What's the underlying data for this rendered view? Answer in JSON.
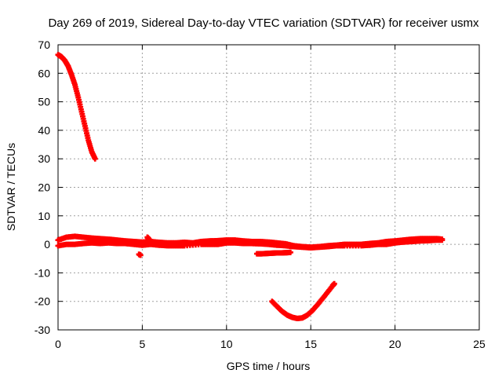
{
  "chart_data": {
    "type": "scatter",
    "title": "Day 269 of 2019, Sidereal Day-to-day VTEC variation (SDTVAR) for receiver usmx",
    "xlabel": "GPS time / hours",
    "ylabel": "SDTVAR / TECUs",
    "xlim": [
      0,
      25
    ],
    "ylim": [
      -30,
      70
    ],
    "xticks": [
      0,
      5,
      10,
      15,
      20,
      25
    ],
    "yticks": [
      -30,
      -20,
      -10,
      0,
      10,
      20,
      30,
      40,
      50,
      60,
      70
    ],
    "grid": true,
    "marker_color": "#ff0000",
    "series": [
      {
        "name": "satellite arc 1",
        "points": [
          [
            0.0,
            66.5
          ],
          [
            0.2,
            65.8
          ],
          [
            0.4,
            64.5
          ],
          [
            0.6,
            62.5
          ],
          [
            0.8,
            59.5
          ],
          [
            1.0,
            56.0
          ],
          [
            1.2,
            51.5
          ],
          [
            1.4,
            46.5
          ],
          [
            1.6,
            41.5
          ],
          [
            1.8,
            36.5
          ],
          [
            2.0,
            32.5
          ],
          [
            2.2,
            30.0
          ]
        ]
      },
      {
        "name": "upper band",
        "points": [
          [
            0.0,
            1.5
          ],
          [
            0.5,
            2.5
          ],
          [
            1.0,
            2.8
          ],
          [
            1.5,
            2.5
          ],
          [
            2.0,
            2.2
          ],
          [
            2.5,
            2.0
          ],
          [
            3.0,
            1.8
          ],
          [
            3.5,
            1.5
          ],
          [
            4.0,
            1.2
          ],
          [
            4.5,
            1.0
          ],
          [
            5.0,
            0.8
          ],
          [
            5.5,
            1.0
          ],
          [
            6.0,
            0.7
          ],
          [
            6.5,
            0.5
          ],
          [
            7.0,
            0.5
          ],
          [
            7.5,
            0.7
          ],
          [
            8.0,
            0.5
          ],
          [
            8.5,
            1.0
          ],
          [
            9.0,
            1.2
          ],
          [
            9.5,
            1.3
          ],
          [
            10.0,
            1.5
          ],
          [
            10.5,
            1.5
          ],
          [
            11.0,
            1.2
          ],
          [
            11.5,
            1.0
          ],
          [
            12.0,
            1.0
          ],
          [
            12.5,
            0.8
          ],
          [
            13.0,
            0.5
          ],
          [
            13.5,
            0.2
          ],
          [
            14.0,
            -0.5
          ],
          [
            14.5,
            -0.8
          ],
          [
            15.0,
            -1.0
          ],
          [
            15.5,
            -0.8
          ],
          [
            16.0,
            -0.5
          ],
          [
            16.5,
            -0.3
          ],
          [
            17.0,
            0.0
          ],
          [
            17.5,
            0.0
          ],
          [
            18.0,
            0.0
          ],
          [
            18.5,
            0.3
          ],
          [
            19.0,
            0.5
          ],
          [
            19.5,
            1.0
          ],
          [
            20.0,
            1.2
          ],
          [
            20.5,
            1.5
          ],
          [
            21.0,
            1.8
          ],
          [
            21.5,
            2.0
          ],
          [
            22.0,
            2.0
          ],
          [
            22.5,
            2.0
          ],
          [
            22.8,
            1.8
          ]
        ]
      },
      {
        "name": "lower band",
        "points": [
          [
            0.0,
            -0.5
          ],
          [
            0.5,
            0.0
          ],
          [
            1.0,
            0.0
          ],
          [
            1.5,
            0.3
          ],
          [
            2.0,
            0.5
          ],
          [
            2.5,
            0.3
          ],
          [
            3.0,
            0.5
          ],
          [
            3.5,
            0.3
          ],
          [
            4.0,
            0.3
          ],
          [
            4.5,
            0.0
          ],
          [
            5.0,
            -0.3
          ],
          [
            5.5,
            0.0
          ],
          [
            6.0,
            -0.3
          ],
          [
            6.5,
            -0.5
          ],
          [
            7.0,
            -0.5
          ],
          [
            7.5,
            -0.5
          ],
          [
            8.5,
            0.0
          ],
          [
            9.0,
            0.0
          ],
          [
            9.5,
            0.0
          ],
          [
            10.0,
            0.5
          ],
          [
            10.5,
            0.5
          ],
          [
            11.0,
            0.3
          ],
          [
            11.5,
            0.3
          ],
          [
            12.0,
            0.2
          ],
          [
            12.5,
            0.0
          ],
          [
            13.0,
            -0.3
          ],
          [
            13.5,
            -0.5
          ],
          [
            14.0,
            -0.8
          ],
          [
            14.5,
            -1.0
          ],
          [
            15.0,
            -1.2
          ],
          [
            15.5,
            -1.0
          ],
          [
            16.0,
            -0.8
          ],
          [
            16.5,
            -0.5
          ],
          [
            17.0,
            -0.5
          ],
          [
            18.0,
            -0.5
          ],
          [
            18.5,
            -0.3
          ],
          [
            19.0,
            0.0
          ],
          [
            19.5,
            0.0
          ],
          [
            20.0,
            0.5
          ],
          [
            20.5,
            0.8
          ],
          [
            21.0,
            1.0
          ],
          [
            21.5,
            1.2
          ],
          [
            22.0,
            1.3
          ],
          [
            22.5,
            1.5
          ],
          [
            22.8,
            1.5
          ]
        ]
      },
      {
        "name": "short offset segments",
        "points": [
          [
            4.8,
            -3.5
          ],
          [
            4.9,
            -3.8
          ],
          [
            11.8,
            -3.3
          ],
          [
            12.1,
            -3.3
          ],
          [
            12.4,
            -3.2
          ],
          [
            12.7,
            -3.1
          ],
          [
            13.0,
            -3.0
          ],
          [
            13.3,
            -3.0
          ],
          [
            13.6,
            -2.9
          ],
          [
            13.8,
            -2.8
          ],
          [
            5.3,
            2.5
          ],
          [
            5.4,
            1.8
          ]
        ]
      },
      {
        "name": "satellite arc 2",
        "points": [
          [
            12.7,
            -20.0
          ],
          [
            13.0,
            -21.8
          ],
          [
            13.3,
            -23.5
          ],
          [
            13.6,
            -24.8
          ],
          [
            13.9,
            -25.6
          ],
          [
            14.2,
            -26.0
          ],
          [
            14.5,
            -25.8
          ],
          [
            14.8,
            -24.8
          ],
          [
            15.1,
            -23.2
          ],
          [
            15.4,
            -21.2
          ],
          [
            15.7,
            -19.0
          ],
          [
            16.0,
            -16.8
          ],
          [
            16.3,
            -14.5
          ],
          [
            16.4,
            -13.8
          ]
        ]
      }
    ]
  }
}
